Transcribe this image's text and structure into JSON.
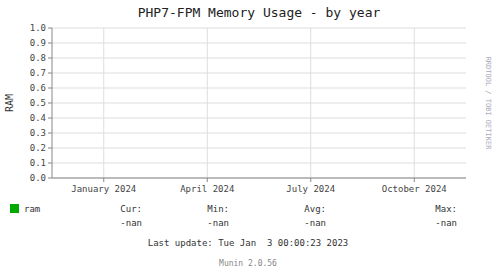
{
  "chart_data": {
    "type": "line",
    "title": "PHP7-FPM Memory Usage - by year",
    "y_label": "RAM",
    "categories": [
      "January 2024",
      "April 2024",
      "July 2024",
      "October 2024"
    ],
    "series": [
      {
        "name": "ram",
        "color": "#00aa00",
        "values": [
          null,
          null,
          null,
          null
        ]
      }
    ],
    "ylim": [
      0.0,
      1.0
    ],
    "yticks": [
      {
        "value": 0.0,
        "label": "0.0"
      },
      {
        "value": 0.1,
        "label": "0.1"
      },
      {
        "value": 0.2,
        "label": "0.2"
      },
      {
        "value": 0.3,
        "label": "0.3"
      },
      {
        "value": 0.4,
        "label": "0.4"
      },
      {
        "value": 0.5,
        "label": "0.5"
      },
      {
        "value": 0.6,
        "label": "0.6"
      },
      {
        "value": 0.7,
        "label": "0.7"
      },
      {
        "value": 0.8,
        "label": "0.8"
      },
      {
        "value": 0.9,
        "label": "0.9"
      },
      {
        "value": 1.0,
        "label": "1.0"
      }
    ],
    "grid": true,
    "legend": "bottom-left",
    "annotations": [
      "Cur:",
      "-nan",
      "Min:",
      "-nan",
      "Avg:",
      "-nan",
      "Max:",
      "-nan",
      "Last update: Tue Jan  3 00:00:23 2023",
      "Munin 2.0.56",
      "RRDTOOL / TOBI OETIKER"
    ]
  }
}
